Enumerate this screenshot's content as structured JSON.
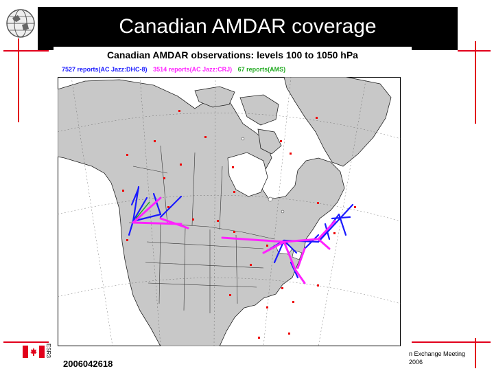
{
  "slide": {
    "title": "Canadian AMDAR coverage"
  },
  "map": {
    "heading": "Canadian AMDAR observations:  levels 100 to 1050 hPa",
    "legend": {
      "dhc8": "7527 reports(AC Jazz:DHC-8)",
      "crj": "3514 reports(AC Jazz:CRJ)",
      "ams": "67 reports(AMS)"
    },
    "datestamp": "2006042618",
    "colors": {
      "dhc8": "#1a1aff",
      "crj": "#ff22ff",
      "ams": "#22aa22",
      "stations": "#ee0000",
      "land": "#c8c8c8",
      "water": "#ffffff"
    }
  },
  "footer": {
    "vertical_text": "ESR3",
    "line1": "n Exchange Meeting",
    "line2": "2006"
  }
}
